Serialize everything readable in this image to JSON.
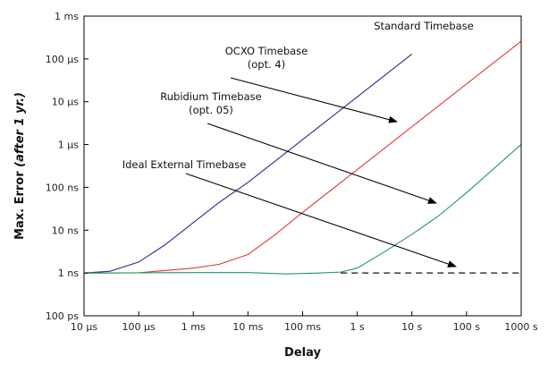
{
  "chart_data": {
    "type": "line",
    "xlabel": "Delay",
    "ylabel": "Max. Error (after 1 yr.)",
    "x_scale": "log",
    "y_scale": "log",
    "xlim": [
      1e-05,
      1000
    ],
    "ylim": [
      1e-10,
      0.001
    ],
    "x_ticks": [
      {
        "value": 1e-05,
        "label": "10 µs"
      },
      {
        "value": 0.0001,
        "label": "100 µs"
      },
      {
        "value": 0.001,
        "label": "1 ms"
      },
      {
        "value": 0.01,
        "label": "10 ms"
      },
      {
        "value": 0.1,
        "label": "100 ms"
      },
      {
        "value": 1,
        "label": "1 s"
      },
      {
        "value": 10,
        "label": "10 s"
      },
      {
        "value": 100,
        "label": "100 s"
      },
      {
        "value": 1000,
        "label": "1000 s"
      }
    ],
    "y_ticks": [
      {
        "value": 1e-10,
        "label": "100 ps"
      },
      {
        "value": 1e-09,
        "label": "1 ns"
      },
      {
        "value": 1e-08,
        "label": "10 ns"
      },
      {
        "value": 1e-07,
        "label": "100 ns"
      },
      {
        "value": 1e-06,
        "label": "1 µs"
      },
      {
        "value": 1e-05,
        "label": "10 µs"
      },
      {
        "value": 0.0001,
        "label": "100 µs"
      },
      {
        "value": 0.001,
        "label": "1 ms"
      }
    ],
    "grid": false,
    "series": [
      {
        "name": "Standard Timebase",
        "color": "#2b2b8c",
        "style": "solid",
        "x": [
          1e-05,
          3e-05,
          0.0001,
          0.0003,
          0.001,
          0.003,
          0.01,
          0.1,
          1,
          10
        ],
        "y": [
          1e-09,
          1.1e-09,
          1.8e-09,
          4.5e-09,
          1.5e-08,
          4.5e-08,
          1.3e-07,
          1.3e-06,
          1.3e-05,
          0.00013
        ]
      },
      {
        "name": "OCXO Timebase (opt. 4)",
        "color": "#e03a3a",
        "style": "solid",
        "x": [
          1e-05,
          0.0001,
          0.001,
          0.003,
          0.01,
          0.03,
          0.1,
          1,
          10,
          100,
          1000
        ],
        "y": [
          1e-09,
          1.01e-09,
          1.3e-09,
          1.6e-09,
          2.7e-09,
          7.5e-09,
          2.6e-08,
          2.6e-07,
          2.6e-06,
          2.6e-05,
          0.00026
        ]
      },
      {
        "name": "Rubidium Timebase (opt. 05)",
        "color": "#1f9a5a",
        "style": "solid",
        "x": [
          1e-05,
          0.001,
          0.01,
          0.05,
          0.2,
          0.5,
          1,
          3,
          10,
          30,
          100,
          1000
        ],
        "y": [
          1e-09,
          1.02e-09,
          1.02e-09,
          9.5e-10,
          1e-09,
          1.05e-09,
          1.3e-09,
          3e-09,
          8e-09,
          2.1e-08,
          7.5e-08,
          1e-06
        ]
      },
      {
        "name": "Ideal External Timebase",
        "color": "#111111",
        "style": "dashed",
        "x": [
          0.5,
          1000
        ],
        "y": [
          1e-09,
          1e-09
        ]
      }
    ],
    "annotations": [
      {
        "lines": [
          "Standard Timebase"
        ]
      },
      {
        "lines": [
          "OCXO Timebase",
          "(opt. 4)"
        ]
      },
      {
        "lines": [
          "Rubidium Timebase",
          "(opt. 05)"
        ]
      },
      {
        "lines": [
          "Ideal External Timebase"
        ]
      }
    ]
  }
}
